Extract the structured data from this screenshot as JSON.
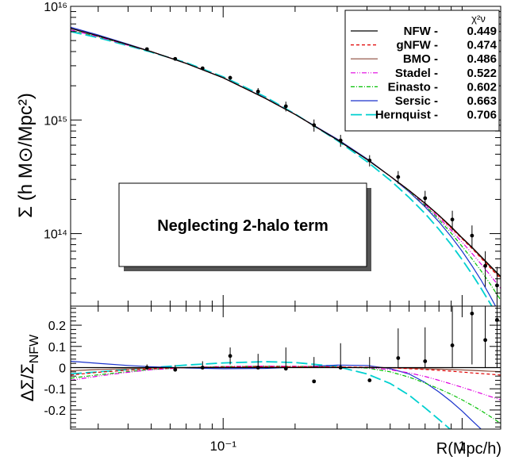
{
  "chart_data": [
    {
      "type": "line",
      "panel": "upper",
      "ylabel": "Σ (h M⊙/Mpc²)",
      "yscale": "log",
      "xscale": "log",
      "xlim": [
        0.023,
        1.45
      ],
      "ylim": [
        23000000000000.0,
        1e+16
      ],
      "y_ticks": [
        {
          "value": 100000000000000.0,
          "label": "10¹⁴"
        },
        {
          "value": 1000000000000000.0,
          "label": "10¹⁵"
        },
        {
          "value": 1e+16,
          "label": "10¹⁶"
        }
      ],
      "annotation": "Neglecting 2-halo term",
      "legend_header": "χ²ν",
      "legend_position": "top-right",
      "series": [
        {
          "name": "NFW -",
          "chi2": "0.449",
          "color": "#000000",
          "dash": ""
        },
        {
          "name": "gNFW -",
          "chi2": "0.474",
          "color": "#e00000",
          "dash": "4,3"
        },
        {
          "name": "BMO -",
          "chi2": "0.486",
          "color": "#8b4a3a",
          "dash": ""
        },
        {
          "name": "Stadel -",
          "chi2": "0.522",
          "color": "#e000e0",
          "dash": "6,2,1,2,1,2"
        },
        {
          "name": "Einasto -",
          "chi2": "0.602",
          "color": "#00c000",
          "dash": "5,2,1,2"
        },
        {
          "name": "Sersic -",
          "chi2": "0.663",
          "color": "#1a33cc",
          "dash": ""
        },
        {
          "name": "Hernquist -",
          "chi2": "0.706",
          "color": "#00d0d0",
          "dash": "14,5"
        }
      ],
      "model_curves": {
        "x": [
          0.023,
          0.03,
          0.04,
          0.05,
          0.07,
          0.1,
          0.15,
          0.2,
          0.3,
          0.4,
          0.5,
          0.6,
          0.7,
          0.8,
          0.9,
          1.0,
          1.1,
          1.2,
          1.3,
          1.45
        ],
        "NFW": [
          6400000000000000.0,
          5500000000000000.0,
          4600000000000000.0,
          4000000000000000.0,
          3150000000000000.0,
          2350000000000000.0,
          1550000000000000.0,
          1120000000000000.0,
          670000000000000.0,
          450000000000000.0,
          320000000000000.0,
          240000000000000.0,
          185000000000000.0,
          145000000000000.0,
          115000000000000.0,
          92000000000000.0,
          76000000000000.0,
          63000000000000.0,
          53000000000000.0,
          42000000000000.0
        ],
        "gNFW": [
          6400000000000000.0,
          5500000000000000.0,
          4600000000000000.0,
          4000000000000000.0,
          3150000000000000.0,
          2350000000000000.0,
          1550000000000000.0,
          1120000000000000.0,
          670000000000000.0,
          450000000000000.0,
          320000000000000.0,
          240000000000000.0,
          184000000000000.0,
          143000000000000.0,
          112000000000000.0,
          90000000000000.0,
          74000000000000.0,
          61000000000000.0,
          51000000000000.0,
          40000000000000.0
        ],
        "BMO": [
          6400000000000000.0,
          5500000000000000.0,
          4600000000000000.0,
          4000000000000000.0,
          3150000000000000.0,
          2350000000000000.0,
          1550000000000000.0,
          1120000000000000.0,
          670000000000000.0,
          450000000000000.0,
          320000000000000.0,
          240000000000000.0,
          185000000000000.0,
          144000000000000.0,
          113000000000000.0,
          91000000000000.0,
          75000000000000.0,
          62000000000000.0,
          52000000000000.0,
          41000000000000.0
        ],
        "Stadel": [
          6200000000000000.0,
          5400000000000000.0,
          4550000000000000.0,
          4000000000000000.0,
          3150000000000000.0,
          2360000000000000.0,
          1560000000000000.0,
          1120000000000000.0,
          670000000000000.0,
          450000000000000.0,
          320000000000000.0,
          238000000000000.0,
          180000000000000.0,
          138000000000000.0,
          107000000000000.0,
          84000000000000.0,
          67000000000000.0,
          54000000000000.0,
          44000000000000.0,
          33000000000000.0
        ],
        "Einasto": [
          6200000000000000.0,
          5400000000000000.0,
          4550000000000000.0,
          4000000000000000.0,
          3150000000000000.0,
          2360000000000000.0,
          1560000000000000.0,
          1120000000000000.0,
          670000000000000.0,
          450000000000000.0,
          320000000000000.0,
          236000000000000.0,
          177000000000000.0,
          133000000000000.0,
          101000000000000.0,
          77000000000000.0,
          60000000000000.0,
          47000000000000.0,
          37000000000000.0,
          26000000000000.0
        ],
        "Sersic": [
          6550000000000000.0,
          5600000000000000.0,
          4650000000000000.0,
          4000000000000000.0,
          3150000000000000.0,
          2350000000000000.0,
          1560000000000000.0,
          1120000000000000.0,
          680000000000000.0,
          455000000000000.0,
          320000000000000.0,
          233000000000000.0,
          172000000000000.0,
          127000000000000.0,
          94000000000000.0,
          70000000000000.0,
          52000000000000.0,
          39000000000000.0,
          29000000000000.0,
          19000000000000.0
        ],
        "Hernquist": [
          6000000000000000.0,
          5300000000000000.0,
          4500000000000000.0,
          3950000000000000.0,
          3200000000000000.0,
          2400000000000000.0,
          1600000000000000.0,
          1130000000000000.0,
          660000000000000.0,
          430000000000000.0,
          295000000000000.0,
          208000000000000.0,
          150000000000000.0,
          109000000000000.0,
          80000000000000.0,
          59000000000000.0,
          44000000000000.0,
          33000000000000.0,
          25000000000000.0,
          17000000000000.0
        ]
      },
      "points": [
        {
          "x": 0.048,
          "y": 4200000000000000.0,
          "err": 130000000000000.0
        },
        {
          "x": 0.063,
          "y": 3450000000000000.0,
          "err": 110000000000000.0
        },
        {
          "x": 0.082,
          "y": 2850000000000000.0,
          "err": 100000000000000.0
        },
        {
          "x": 0.107,
          "y": 2350000000000000.0,
          "err": 100000000000000.0
        },
        {
          "x": 0.14,
          "y": 1780000000000000.0,
          "err": 130000000000000.0
        },
        {
          "x": 0.183,
          "y": 1320000000000000.0,
          "err": 130000000000000.0
        },
        {
          "x": 0.24,
          "y": 900000000000000.0,
          "err": 110000000000000.0
        },
        {
          "x": 0.31,
          "y": 660000000000000.0,
          "err": 80000000000000.0
        },
        {
          "x": 0.41,
          "y": 440000000000000.0,
          "err": 50000000000000.0
        },
        {
          "x": 0.54,
          "y": 315000000000000.0,
          "err": 40000000000000.0
        },
        {
          "x": 0.7,
          "y": 205000000000000.0,
          "err": 33000000000000.0
        },
        {
          "x": 0.91,
          "y": 133000000000000.0,
          "err": 26000000000000.0
        },
        {
          "x": 1.1,
          "y": 96000000000000.0,
          "err": 22000000000000.0
        },
        {
          "x": 1.25,
          "y": 52000000000000.0,
          "err": 18000000000000.0
        },
        {
          "x": 1.4,
          "y": 35000000000000.0,
          "err": 16000000000000.0
        }
      ]
    },
    {
      "type": "line",
      "panel": "lower",
      "ylabel": "ΔΣ/Σ",
      "ylabel_subscript": "NFW",
      "xlabel": "R(Mpc/h)",
      "xscale": "log",
      "xlim": [
        0.023,
        1.45
      ],
      "ylim": [
        -0.29,
        0.29
      ],
      "x_ticks": [
        {
          "value": 0.1,
          "label": "10⁻¹"
        },
        {
          "value": 1,
          "label": "1"
        }
      ],
      "y_ticks": [
        {
          "value": -0.2,
          "label": "-0.2"
        },
        {
          "value": -0.1,
          "label": "-0.1"
        },
        {
          "value": 0,
          "label": "0"
        },
        {
          "value": 0.1,
          "label": "0.1"
        },
        {
          "value": 0.2,
          "label": "0.2"
        }
      ],
      "residual_curves": {
        "x": [
          0.023,
          0.03,
          0.04,
          0.05,
          0.07,
          0.1,
          0.15,
          0.2,
          0.3,
          0.4,
          0.5,
          0.6,
          0.7,
          0.8,
          0.9,
          1.0,
          1.1,
          1.2,
          1.3,
          1.45
        ],
        "NFW": [
          0,
          0,
          0,
          0,
          0,
          0,
          0,
          0,
          0,
          0,
          0,
          0,
          0,
          0,
          0,
          0,
          0,
          0,
          0,
          0
        ],
        "gNFW": [
          -0.035,
          -0.022,
          -0.012,
          -0.005,
          0.0,
          0.003,
          0.004,
          0.004,
          0.003,
          0.002,
          -0.001,
          -0.005,
          -0.009,
          -0.013,
          -0.017,
          -0.021,
          -0.025,
          -0.028,
          -0.031,
          -0.035
        ],
        "BMO": [
          -0.015,
          -0.009,
          -0.005,
          -0.002,
          0.0,
          0.001,
          0.002,
          0.002,
          0.001,
          0.001,
          -0.001,
          -0.003,
          -0.005,
          -0.007,
          -0.009,
          -0.011,
          -0.013,
          -0.015,
          -0.017,
          -0.019
        ],
        "Stadel": [
          -0.06,
          -0.04,
          -0.022,
          -0.01,
          0.0,
          0.005,
          0.007,
          0.006,
          0.004,
          0.0,
          -0.01,
          -0.025,
          -0.042,
          -0.06,
          -0.077,
          -0.093,
          -0.108,
          -0.122,
          -0.135,
          -0.152
        ],
        "Einasto": [
          -0.05,
          -0.034,
          -0.019,
          -0.009,
          0.0,
          0.005,
          0.007,
          0.006,
          0.004,
          -0.002,
          -0.02,
          -0.045,
          -0.073,
          -0.1,
          -0.126,
          -0.152,
          -0.178,
          -0.203,
          -0.228,
          -0.263
        ],
        "Sersic": [
          0.03,
          0.02,
          0.01,
          0.004,
          -0.002,
          -0.005,
          -0.004,
          0.002,
          0.012,
          0.01,
          -0.005,
          -0.03,
          -0.07,
          -0.115,
          -0.16,
          -0.205,
          -0.25,
          -0.29,
          -0.33,
          -0.38
        ],
        "Hernquist": [
          -0.03,
          -0.02,
          -0.01,
          0.0,
          0.012,
          0.022,
          0.028,
          0.024,
          0.005,
          -0.03,
          -0.075,
          -0.13,
          -0.19,
          -0.245,
          -0.295,
          -0.345,
          -0.395,
          -0.44,
          -0.48,
          -0.53
        ]
      },
      "points": [
        {
          "x": 0.048,
          "y": 0.0,
          "err": 0.015
        },
        {
          "x": 0.063,
          "y": -0.01,
          "err": 0.022
        },
        {
          "x": 0.082,
          "y": 0.0,
          "err": 0.03
        },
        {
          "x": 0.107,
          "y": 0.055,
          "err": 0.04
        },
        {
          "x": 0.14,
          "y": 0.0,
          "err": 0.065
        },
        {
          "x": 0.183,
          "y": -0.005,
          "err": 0.1
        },
        {
          "x": 0.24,
          "y": -0.065,
          "err": 0.115
        },
        {
          "x": 0.31,
          "y": 0.0,
          "err": 0.115
        },
        {
          "x": 0.41,
          "y": -0.06,
          "err": 0.11
        },
        {
          "x": 0.54,
          "y": 0.045,
          "err": 0.14
        },
        {
          "x": 0.7,
          "y": 0.03,
          "err": 0.16
        },
        {
          "x": 0.91,
          "y": 0.105,
          "err": 0.2
        },
        {
          "x": 1.1,
          "y": 0.255,
          "err": 0.24
        },
        {
          "x": 1.25,
          "y": 0.13,
          "err": 0.34
        },
        {
          "x": 1.4,
          "y": 0.225,
          "err": 0.45
        }
      ]
    }
  ]
}
